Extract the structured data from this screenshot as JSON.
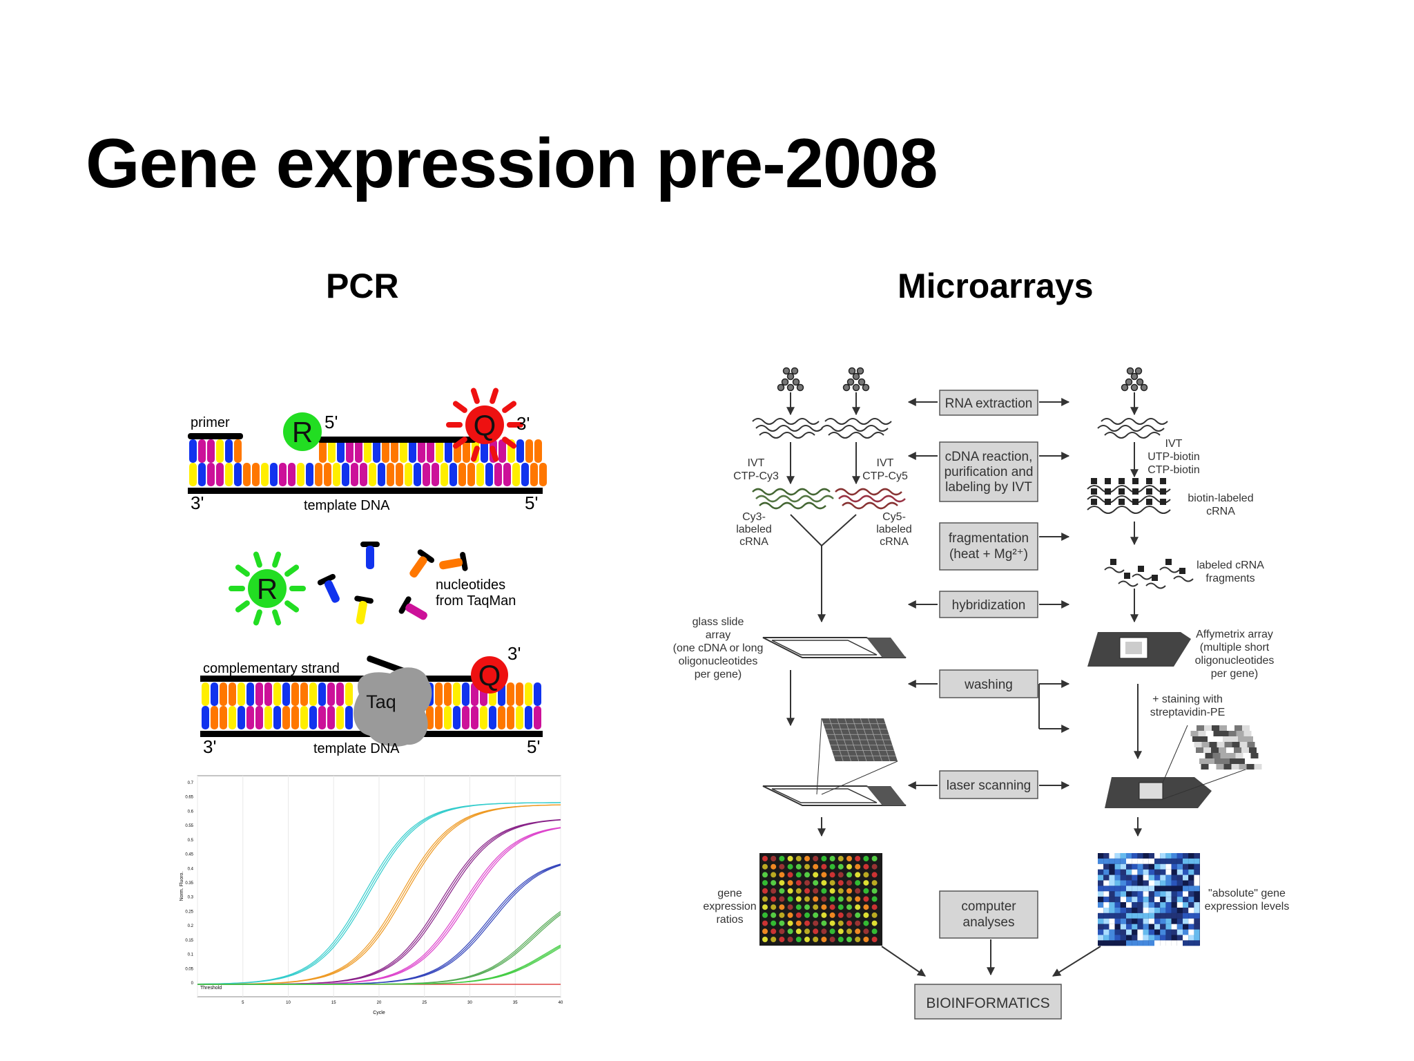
{
  "slide": {
    "title": "Gene expression pre-2008"
  },
  "pcr": {
    "heading": "PCR",
    "probe_diagram": {
      "primer_label": "primer",
      "reporter_label": "R",
      "quencher_label": "Q",
      "five_prime": "5'",
      "three_prime": "3'",
      "template_label": "template DNA",
      "nucleotides_label_line1": "nucleotides",
      "nucleotides_label_line2": "from TaqMan",
      "complementary_label": "complementary strand",
      "taq_label": "Taq"
    },
    "amplification_plot": {
      "y_axis_label": "Norm. Fluoro.",
      "x_axis_label": "Cycle",
      "threshold_label": "Threshold",
      "y_ticks": [
        "0",
        "0.05",
        "0.1",
        "0.15",
        "0.2",
        "0.25",
        "0.3",
        "0.35",
        "0.4",
        "0.45",
        "0.5",
        "0.55",
        "0.6",
        "0.65",
        "0.7"
      ],
      "x_ticks": [
        "5",
        "10",
        "15",
        "20",
        "25",
        "30",
        "35",
        "40"
      ]
    }
  },
  "microarrays": {
    "heading": "Microarrays",
    "steps": {
      "rna_extraction": "RNA extraction",
      "cdna_line1": "cDNA reaction,",
      "cdna_line2": "purification and",
      "cdna_line3": "labeling by IVT",
      "frag_line1": "fragmentation",
      "frag_line2": "(heat + Mg²⁺)",
      "hybridization": "hybridization",
      "washing": "washing",
      "laser_scanning": "laser scanning",
      "computer_line1": "computer",
      "computer_line2": "analyses",
      "bioinformatics": "BIOINFORMATICS"
    },
    "left_labels": {
      "ivt1_line1": "IVT",
      "ivt1_line2": "CTP-Cy3",
      "ivt2_line1": "IVT",
      "ivt2_line2": "CTP-Cy5",
      "cy3_line1": "Cy3-",
      "cy3_line2": "labeled",
      "cy3_line3": "cRNA",
      "cy5_line1": "Cy5-",
      "cy5_line2": "labeled",
      "cy5_line3": "cRNA",
      "glass_line1": "glass slide",
      "glass_line2": "array",
      "glass_line3": "(one cDNA or long",
      "glass_line4": "oligonucleotides",
      "glass_line5": "per gene)",
      "ratios_line1": "gene",
      "ratios_line2": "expression",
      "ratios_line3": "ratios"
    },
    "right_labels": {
      "ivt_line1": "IVT",
      "ivt_line2": "UTP-biotin",
      "ivt_line3": "CTP-biotin",
      "biotin_line1": "biotin-labeled",
      "biotin_line2": "cRNA",
      "frag_line1": "labeled cRNA",
      "frag_line2": "fragments",
      "affy_line1": "Affymetrix array",
      "affy_line2": "(multiple short",
      "affy_line3": "oligonucleotides",
      "affy_line4": "per gene)",
      "stain_line1": "+ staining with",
      "stain_line2": "streptavidin-PE",
      "abs_line1": "\"absolute\" gene",
      "abs_line2": "expression levels"
    }
  },
  "colors": {
    "reporter": "#22dd22",
    "quencher": "#ee1111",
    "base_blue": "#1133ee",
    "base_yellow": "#ffee00",
    "base_orange": "#ff7700",
    "base_magenta": "#cc1199",
    "taq": "#9a9a9a",
    "step_box": "#d6d6d6"
  }
}
